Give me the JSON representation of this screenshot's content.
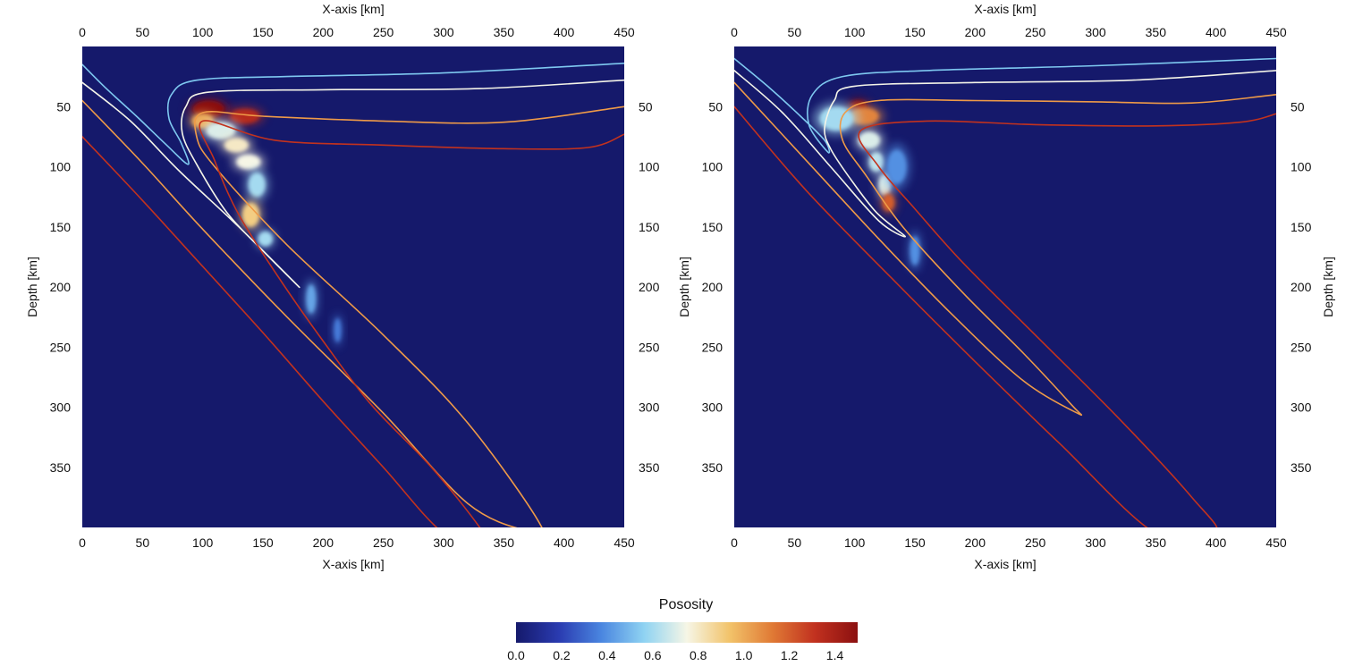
{
  "colors": {
    "background": "#15196b",
    "colormap": [
      "#15196b",
      "#2a3bb0",
      "#4a86e0",
      "#8fd3f2",
      "#f6f6e6",
      "#f2c36a",
      "#e07a35",
      "#c1311f",
      "#8b1010"
    ],
    "contour_light_blue": "#7ec8f0",
    "contour_white": "#f4f4e8",
    "contour_orange": "#ee9a48",
    "contour_red": "#c2321e"
  },
  "chart_data": [
    {
      "type": "heatmap",
      "panel": "left",
      "title": "",
      "xlabel": "X-axis [km]",
      "ylabel": "Depth [km]",
      "xlim": [
        0,
        450
      ],
      "ylim": [
        0,
        400
      ],
      "xticks": [
        0,
        50,
        100,
        150,
        200,
        250,
        300,
        350,
        400,
        450
      ],
      "yticks": [
        50,
        100,
        150,
        200,
        250,
        300,
        350
      ],
      "x_axis_top": true,
      "x_axis_bottom": true,
      "y_axis_left": true,
      "y_axis_right": true,
      "y_label_right": false,
      "porosity_features": [
        {
          "x": 105,
          "y": 52,
          "rx": 13,
          "ry": 7,
          "value": 1.5
        },
        {
          "x": 135,
          "y": 58,
          "rx": 12,
          "ry": 6,
          "value": 1.35
        },
        {
          "x": 100,
          "y": 62,
          "rx": 9,
          "ry": 6,
          "value": 1.0
        },
        {
          "x": 115,
          "y": 70,
          "rx": 12,
          "ry": 7,
          "value": 0.7
        },
        {
          "x": 128,
          "y": 82,
          "rx": 10,
          "ry": 6,
          "value": 0.8
        },
        {
          "x": 138,
          "y": 96,
          "rx": 10,
          "ry": 6,
          "value": 0.75
        },
        {
          "x": 145,
          "y": 115,
          "rx": 7,
          "ry": 10,
          "value": 0.6
        },
        {
          "x": 140,
          "y": 140,
          "rx": 7,
          "ry": 10,
          "value": 0.9
        },
        {
          "x": 152,
          "y": 160,
          "rx": 6,
          "ry": 6,
          "value": 0.6
        },
        {
          "x": 190,
          "y": 210,
          "rx": 4,
          "ry": 12,
          "value": 0.45
        },
        {
          "x": 212,
          "y": 236,
          "rx": 3,
          "ry": 10,
          "value": 0.35
        }
      ],
      "contours": [
        {
          "level": 0.6,
          "color": "contour_light_blue",
          "x": [
            0,
            20,
            45,
            70,
            88,
            82,
            72,
            74,
            95,
            170,
            300,
            450
          ],
          "y": [
            15,
            35,
            58,
            82,
            98,
            80,
            60,
            40,
            28,
            25,
            22,
            14
          ]
        },
        {
          "level": 0.8,
          "color": "contour_white",
          "x": [
            0,
            40,
            80,
            130,
            180,
            150,
            120,
            95,
            83,
            86,
            105,
            200,
            330,
            450
          ],
          "y": [
            30,
            62,
            103,
            150,
            200,
            170,
            138,
            98,
            72,
            50,
            38,
            36,
            35,
            28
          ]
        },
        {
          "level": 1.0,
          "color": "contour_orange",
          "x": [
            0,
            50,
            100,
            170,
            250,
            320,
            370,
            380,
            320,
            250,
            170,
            110,
            95,
            100,
            150,
            250,
            350,
            450
          ],
          "y": [
            45,
            97,
            152,
            225,
            305,
            380,
            403,
            397,
            313,
            240,
            165,
            100,
            75,
            55,
            58,
            62,
            63,
            50
          ]
        },
        {
          "level": 1.3,
          "color": "contour_red",
          "x": [
            0,
            50,
            100,
            150,
            200,
            250,
            300,
            340,
            330,
            290,
            240,
            200,
            165,
            130,
            110,
            100,
            160,
            250,
            350,
            420,
            450
          ],
          "y": [
            75,
            128,
            183,
            238,
            295,
            350,
            405,
            420,
            400,
            350,
            298,
            245,
            195,
            140,
            95,
            62,
            78,
            82,
            85,
            84,
            73
          ]
        }
      ]
    },
    {
      "type": "heatmap",
      "panel": "right",
      "title": "",
      "xlabel": "X-axis [km]",
      "ylabel": "Depth [km]",
      "xlim": [
        0,
        450
      ],
      "ylim": [
        0,
        400
      ],
      "xticks": [
        0,
        50,
        100,
        150,
        200,
        250,
        300,
        350,
        400,
        450
      ],
      "yticks": [
        50,
        100,
        150,
        200,
        250,
        300,
        350
      ],
      "x_axis_top": true,
      "x_axis_bottom": true,
      "y_axis_left": true,
      "y_axis_right": true,
      "y_label_right": true,
      "porosity_features": [
        {
          "x": 103,
          "y": 50,
          "rx": 7,
          "ry": 5,
          "value": 1.5
        },
        {
          "x": 108,
          "y": 58,
          "rx": 12,
          "ry": 7,
          "value": 1.1
        },
        {
          "x": 85,
          "y": 60,
          "rx": 14,
          "ry": 10,
          "value": 0.6
        },
        {
          "x": 112,
          "y": 78,
          "rx": 9,
          "ry": 7,
          "value": 0.7
        },
        {
          "x": 118,
          "y": 96,
          "rx": 6,
          "ry": 8,
          "value": 0.65
        },
        {
          "x": 125,
          "y": 115,
          "rx": 5,
          "ry": 9,
          "value": 0.7
        },
        {
          "x": 128,
          "y": 130,
          "rx": 5,
          "ry": 7,
          "value": 1.2
        },
        {
          "x": 150,
          "y": 170,
          "rx": 4,
          "ry": 12,
          "value": 0.4
        },
        {
          "x": 135,
          "y": 100,
          "rx": 8,
          "ry": 14,
          "value": 0.4
        }
      ],
      "contours": [
        {
          "level": 0.6,
          "color": "contour_light_blue",
          "x": [
            0,
            30,
            55,
            75,
            78,
            62,
            65,
            90,
            160,
            300,
            450
          ],
          "y": [
            10,
            35,
            58,
            78,
            88,
            65,
            40,
            25,
            20,
            16,
            10
          ]
        },
        {
          "level": 0.8,
          "color": "contour_white",
          "x": [
            0,
            40,
            80,
            120,
            142,
            118,
            95,
            80,
            75,
            83,
            100,
            200,
            330,
            450
          ],
          "y": [
            20,
            55,
            100,
            145,
            158,
            138,
            108,
            85,
            68,
            45,
            33,
            30,
            28,
            20
          ]
        },
        {
          "level": 1.0,
          "color": "contour_orange",
          "x": [
            0,
            60,
            120,
            180,
            240,
            285,
            280,
            240,
            190,
            140,
            110,
            90,
            92,
            120,
            200,
            300,
            380,
            450
          ],
          "y": [
            30,
            95,
            160,
            222,
            278,
            305,
            298,
            255,
            205,
            150,
            108,
            78,
            55,
            45,
            45,
            46,
            47,
            40
          ]
        },
        {
          "level": 1.3,
          "color": "contour_red",
          "x": [
            0,
            60,
            130,
            200,
            270,
            350,
            400,
            380,
            320,
            250,
            190,
            150,
            120,
            105,
            160,
            250,
            350,
            420,
            450
          ],
          "y": [
            50,
            120,
            192,
            262,
            330,
            405,
            405,
            375,
            310,
            240,
            180,
            135,
            100,
            70,
            62,
            65,
            66,
            63,
            56
          ]
        }
      ]
    }
  ],
  "colorbar": {
    "title": "Pososity",
    "min": 0.0,
    "max": 1.5,
    "tick_values": [
      0.0,
      0.2,
      0.4,
      0.6,
      0.8,
      1.0,
      1.2,
      1.4
    ],
    "tick_labels": [
      "0.0",
      "0.2",
      "0.4",
      "0.6",
      "0.8",
      "1.0",
      "1.2",
      "1.4"
    ]
  }
}
